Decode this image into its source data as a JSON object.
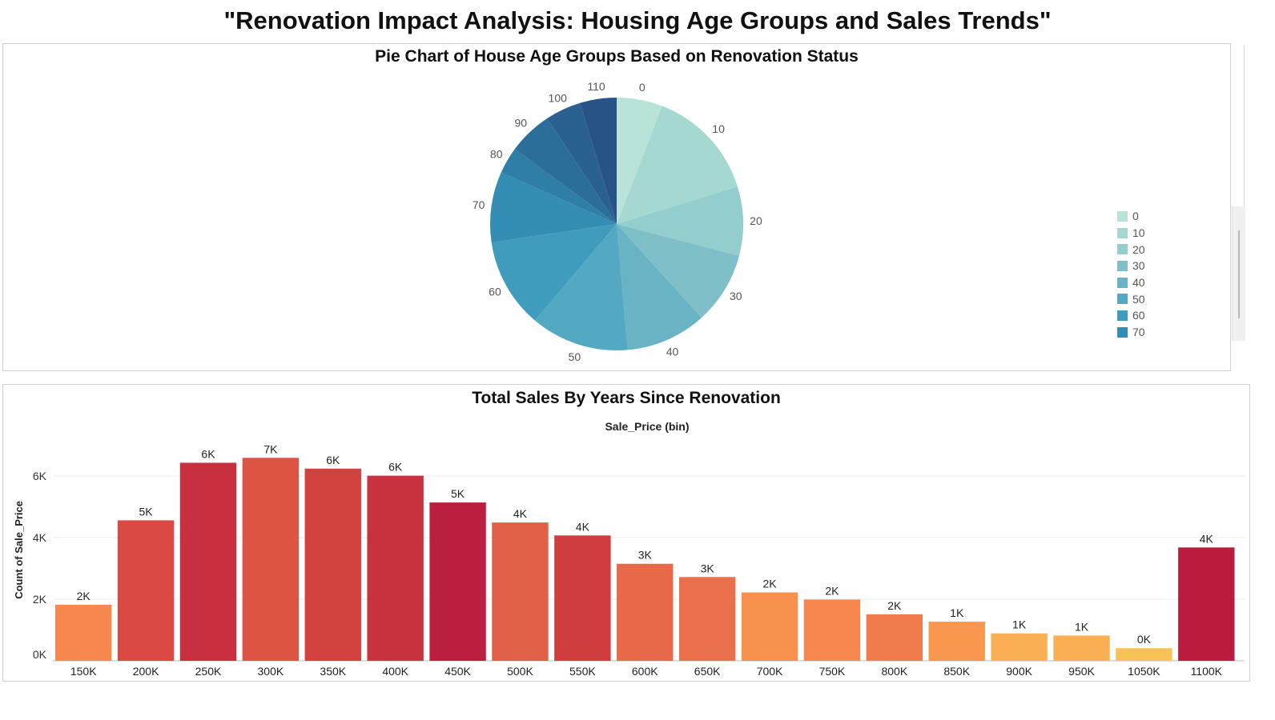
{
  "page_title": "\"Renovation Impact Analysis: Housing Age Groups and Sales Trends\"",
  "chart_data": [
    {
      "type": "pie",
      "title": "Pie Chart of House Age Groups Based on Renovation Status",
      "slice_labels": [
        "0",
        "10",
        "20",
        "30",
        "40",
        "50",
        "60",
        "70",
        "80",
        "90",
        "100",
        "110"
      ],
      "values": [
        5.5,
        13.5,
        8.3,
        8.7,
        9.7,
        11.8,
        10.8,
        8.5,
        3.2,
        5.3,
        4.3,
        4.4
      ],
      "colors": [
        "#b9e3d9",
        "#a5d8d1",
        "#93cdcd",
        "#7fc0c8",
        "#69b4c4",
        "#53a8c2",
        "#409cbd",
        "#338db4",
        "#2f7ea8",
        "#2c6e9a",
        "#2a6191",
        "#285387"
      ],
      "legend": {
        "position": "right",
        "items": [
          "0",
          "10",
          "20",
          "30",
          "40",
          "50",
          "60",
          "70"
        ]
      }
    },
    {
      "type": "bar",
      "title": "Total Sales By Years Since Renovation",
      "xlabel": "Sale_Price (bin)",
      "ylabel": "Count of Sale_Price",
      "categories": [
        "150K",
        "200K",
        "250K",
        "300K",
        "350K",
        "400K",
        "450K",
        "500K",
        "550K",
        "600K",
        "650K",
        "700K",
        "750K",
        "800K",
        "850K",
        "900K",
        "950K",
        "1050K",
        "1100K"
      ],
      "values": [
        1820,
        4560,
        6430,
        6590,
        6240,
        6010,
        5140,
        4490,
        4070,
        3150,
        2720,
        2220,
        1990,
        1510,
        1270,
        890,
        820,
        410,
        3680
      ],
      "data_labels": [
        "2K",
        "5K",
        "6K",
        "7K",
        "6K",
        "6K",
        "5K",
        "4K",
        "4K",
        "3K",
        "3K",
        "2K",
        "2K",
        "2K",
        "1K",
        "1K",
        "1K",
        "0K",
        "4K"
      ],
      "colors": [
        "#f6874f",
        "#da4a43",
        "#c8303f",
        "#dd5444",
        "#d2433f",
        "#c9323f",
        "#bb1f3f",
        "#e06048",
        "#cf3d3f",
        "#e8694a",
        "#ea704b",
        "#f8904e",
        "#f6874f",
        "#f07b4d",
        "#f9974f",
        "#fab052",
        "#fab052",
        "#f8c356",
        "#b91c3f"
      ],
      "yticks": [
        "0K",
        "2K",
        "4K",
        "6K"
      ],
      "ylim": [
        0,
        7200
      ]
    }
  ]
}
